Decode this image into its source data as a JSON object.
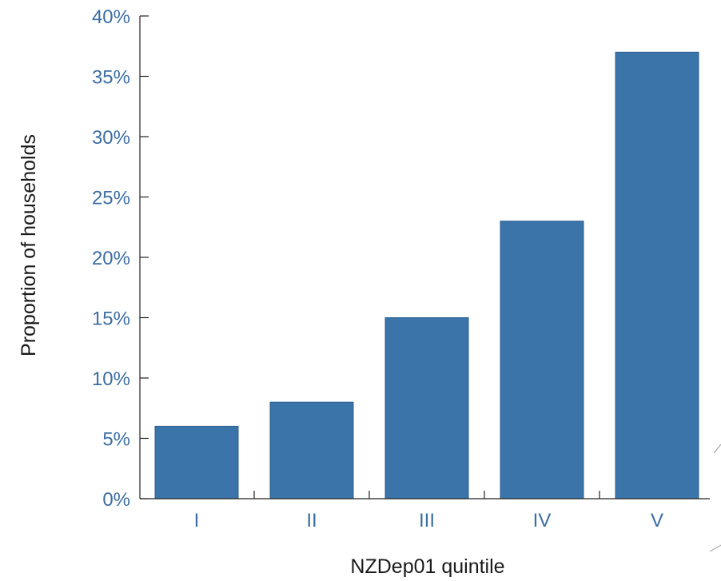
{
  "chart_data": {
    "type": "bar",
    "title": "",
    "xlabel": "NZDep01 quintile",
    "ylabel": "Proportion of households",
    "categories": [
      "I",
      "II",
      "III",
      "IV",
      "V"
    ],
    "values": [
      6,
      8,
      15,
      23,
      37
    ],
    "value_unit": "%",
    "ylim": [
      0,
      40
    ],
    "yticks": [
      "0%",
      "5%",
      "10%",
      "15%",
      "20%",
      "25%",
      "30%",
      "35%",
      "40%"
    ],
    "grid": false,
    "legend": "none",
    "colors": {
      "bar": "#3a74a8",
      "tick_text": "#3c6ea3",
      "axis": "#222222"
    }
  }
}
